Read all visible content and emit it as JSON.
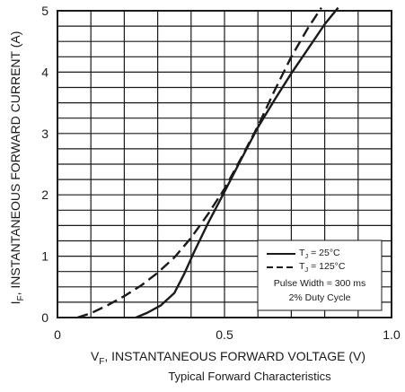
{
  "chart_data": {
    "type": "line",
    "x_label": "V_F, INSTANTANEOUS FORWARD VOLTAGE (V)",
    "x_label_main": "V",
    "x_label_sub": "F",
    "x_label_rest": ", INSTANTANEOUS FORWARD VOLTAGE (V)",
    "y_label_main": "I",
    "y_label_sub": "F",
    "y_label_rest": ", INSTANTANEOUS FORWARD CURRENT (A)",
    "caption": "Typical Forward Characteristics",
    "xlim": [
      0,
      1.0
    ],
    "ylim": [
      0,
      5
    ],
    "x_ticks": [
      "0",
      "0.5",
      "1.0"
    ],
    "x_tick_values": [
      0,
      0.5,
      1.0
    ],
    "y_ticks": [
      "0",
      "1",
      "2",
      "3",
      "4",
      "5"
    ],
    "y_tick_values": [
      0,
      1,
      2,
      3,
      4,
      5
    ],
    "grid": true,
    "legend_position": "bottom-right",
    "series": [
      {
        "name_main": "T",
        "name_sub": "J",
        "name_rest": " = 25°C",
        "style": "solid",
        "x": [
          0.235,
          0.27,
          0.31,
          0.35,
          0.38,
          0.41,
          0.45,
          0.5,
          0.55,
          0.6,
          0.65,
          0.7,
          0.75,
          0.8,
          0.84
        ],
        "y": [
          0,
          0.08,
          0.2,
          0.4,
          0.72,
          1.08,
          1.53,
          2.05,
          2.58,
          3.1,
          3.55,
          3.98,
          4.38,
          4.78,
          5.05
        ]
      },
      {
        "name_main": "T",
        "name_sub": "J",
        "name_rest": " = 125°C",
        "style": "dashed",
        "x": [
          0.06,
          0.1,
          0.15,
          0.2,
          0.25,
          0.3,
          0.35,
          0.4,
          0.45,
          0.5,
          0.55,
          0.6,
          0.65,
          0.7,
          0.75,
          0.79
        ],
        "y": [
          0,
          0.07,
          0.2,
          0.35,
          0.52,
          0.73,
          0.98,
          1.3,
          1.68,
          2.1,
          2.6,
          3.12,
          3.7,
          4.25,
          4.72,
          5.05
        ]
      }
    ],
    "legend_note_1": "Pulse Width = 300 ms",
    "legend_note_2": "2% Duty Cycle"
  }
}
